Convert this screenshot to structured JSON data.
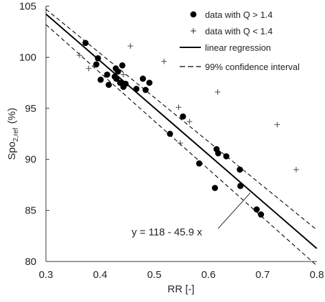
{
  "chart_data": {
    "type": "scatter",
    "xlabel": "RR [-]",
    "ylabel": {
      "main": "Spo",
      "sub": "2,ref",
      "unit": "(%)"
    },
    "xlim": [
      0.3,
      0.8
    ],
    "ylim": [
      80,
      105
    ],
    "x_ticks": [
      "0.3",
      "0.4",
      "0.5",
      "0.6",
      "0.7",
      "0.8"
    ],
    "y_ticks": [
      "80",
      "85",
      "90",
      "95",
      "100",
      "105"
    ],
    "grid": false,
    "legend_position": "top-right",
    "legend": [
      {
        "label": "data with Q > 1.4",
        "style": "dot"
      },
      {
        "label": "data with Q < 1.4",
        "style": "plus"
      },
      {
        "label": "linear regression",
        "style": "solid-line"
      },
      {
        "label": "99% confidence interval",
        "style": "dashed-line"
      }
    ],
    "annotation": "y = 118 - 45.9 x",
    "regression": {
      "intercept": 118.0,
      "slope": -45.9
    },
    "confidence_interval_99": {
      "upper": [
        [
          0.3,
          104.7
        ],
        [
          0.8,
          83.1
        ]
      ],
      "lower": [
        [
          0.3,
          103.2
        ],
        [
          0.8,
          79.6
        ]
      ]
    },
    "series": [
      {
        "name": "data with Q > 1.4",
        "marker": "dot",
        "points": [
          [
            0.373,
            101.4
          ],
          [
            0.393,
            99.3
          ],
          [
            0.396,
            99.9
          ],
          [
            0.401,
            97.8
          ],
          [
            0.413,
            98.3
          ],
          [
            0.416,
            97.3
          ],
          [
            0.427,
            98.1
          ],
          [
            0.429,
            98.9
          ],
          [
            0.43,
            97.9
          ],
          [
            0.433,
            98.6
          ],
          [
            0.437,
            97.5
          ],
          [
            0.441,
            99.2
          ],
          [
            0.443,
            97.1
          ],
          [
            0.447,
            97.4
          ],
          [
            0.467,
            96.9
          ],
          [
            0.479,
            97.9
          ],
          [
            0.484,
            96.8
          ],
          [
            0.491,
            97.5
          ],
          [
            0.529,
            92.5
          ],
          [
            0.553,
            94.2
          ],
          [
            0.583,
            89.6
          ],
          [
            0.612,
            87.2
          ],
          [
            0.615,
            91.0
          ],
          [
            0.618,
            90.6
          ],
          [
            0.633,
            90.3
          ],
          [
            0.658,
            89.0
          ],
          [
            0.659,
            87.4
          ],
          [
            0.689,
            85.1
          ],
          [
            0.697,
            84.6
          ]
        ]
      },
      {
        "name": "data with Q < 1.4",
        "marker": "plus",
        "points": [
          [
            0.362,
            100.2
          ],
          [
            0.379,
            98.9
          ],
          [
            0.443,
            98.3
          ],
          [
            0.456,
            101.1
          ],
          [
            0.518,
            99.6
          ],
          [
            0.545,
            95.1
          ],
          [
            0.548,
            91.6
          ],
          [
            0.565,
            93.7
          ],
          [
            0.617,
            96.6
          ],
          [
            0.727,
            93.4
          ],
          [
            0.762,
            89.0
          ]
        ]
      }
    ]
  }
}
